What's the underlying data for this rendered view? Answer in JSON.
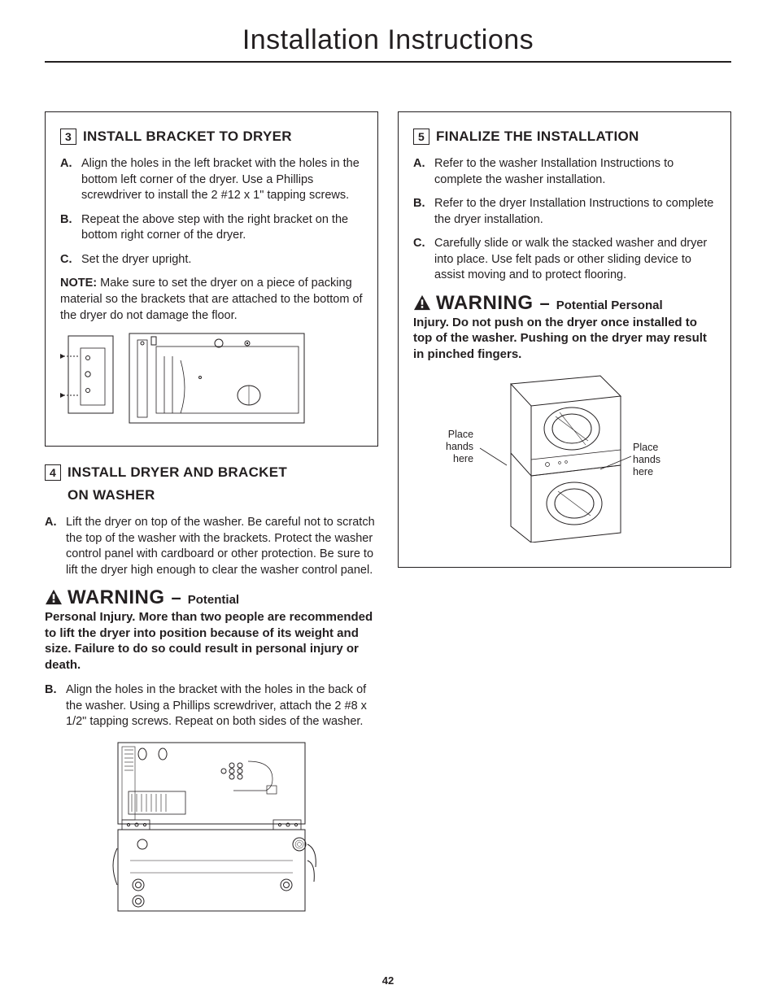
{
  "page": {
    "title": "Installation Instructions",
    "number": "42"
  },
  "step3": {
    "num": "3",
    "heading": "INSTALL BRACKET TO DRYER",
    "items": [
      {
        "lbl": "A.",
        "text": "Align the holes in the left bracket with the holes in the bottom left corner of the dryer. Use a Phillips screwdriver to install the 2 #12 x 1\" tapping screws."
      },
      {
        "lbl": "B.",
        "text": "Repeat the above step with the right bracket on the bottom right corner of the dryer."
      },
      {
        "lbl": "C.",
        "text": "Set the dryer upright."
      }
    ],
    "note_label": "NOTE:",
    "note_text": " Make sure to set the dryer on a piece of packing material so the brackets that are attached to the bottom of the dryer do not damage the floor."
  },
  "step4": {
    "num": "4",
    "heading_l1": "INSTALL DRYER AND BRACKET",
    "heading_l2": "ON WASHER",
    "itemA": {
      "lbl": "A.",
      "text": "Lift the dryer on top of the washer. Be careful not to scratch the top of the washer with the brackets. Protect the washer control panel with cardboard or other protection. Be sure to lift the dryer high enough to clear the washer control panel."
    },
    "warning_word": "WARNING",
    "warning_dash": "–",
    "warning_lead": "Potential",
    "warning_rest": "Personal Injury. More than two people are recommended to lift the dryer into position because of its weight and size. Failure to do so could result in personal injury or death.",
    "itemB": {
      "lbl": "B.",
      "text": "Align the holes in the bracket with the holes in the back of the washer. Using a Phillips screwdriver, attach the 2 #8 x 1/2\" tapping screws. Repeat on both sides of the washer."
    }
  },
  "step5": {
    "num": "5",
    "heading": "FINALIZE THE INSTALLATION",
    "items": [
      {
        "lbl": "A.",
        "text": "Refer to the washer Installation Instructions to complete the washer installation."
      },
      {
        "lbl": "B.",
        "text": "Refer to the dryer Installation Instructions to complete the dryer installation."
      },
      {
        "lbl": "C.",
        "text": "Carefully slide or walk the stacked washer and dryer into place. Use felt pads or other sliding device to assist moving and to protect flooring."
      }
    ],
    "warning_word": "WARNING",
    "warning_dash": "–",
    "warning_lead": "Potential Personal",
    "warning_rest": "Injury. Do not push on the dryer once installed to top of the washer. Pushing on the dryer may result in pinched fingers.",
    "hand_label_left": "Place\nhands\nhere",
    "hand_label_right": "Place\nhands\nhere"
  },
  "colors": {
    "text": "#231f20",
    "bg": "#ffffff"
  }
}
